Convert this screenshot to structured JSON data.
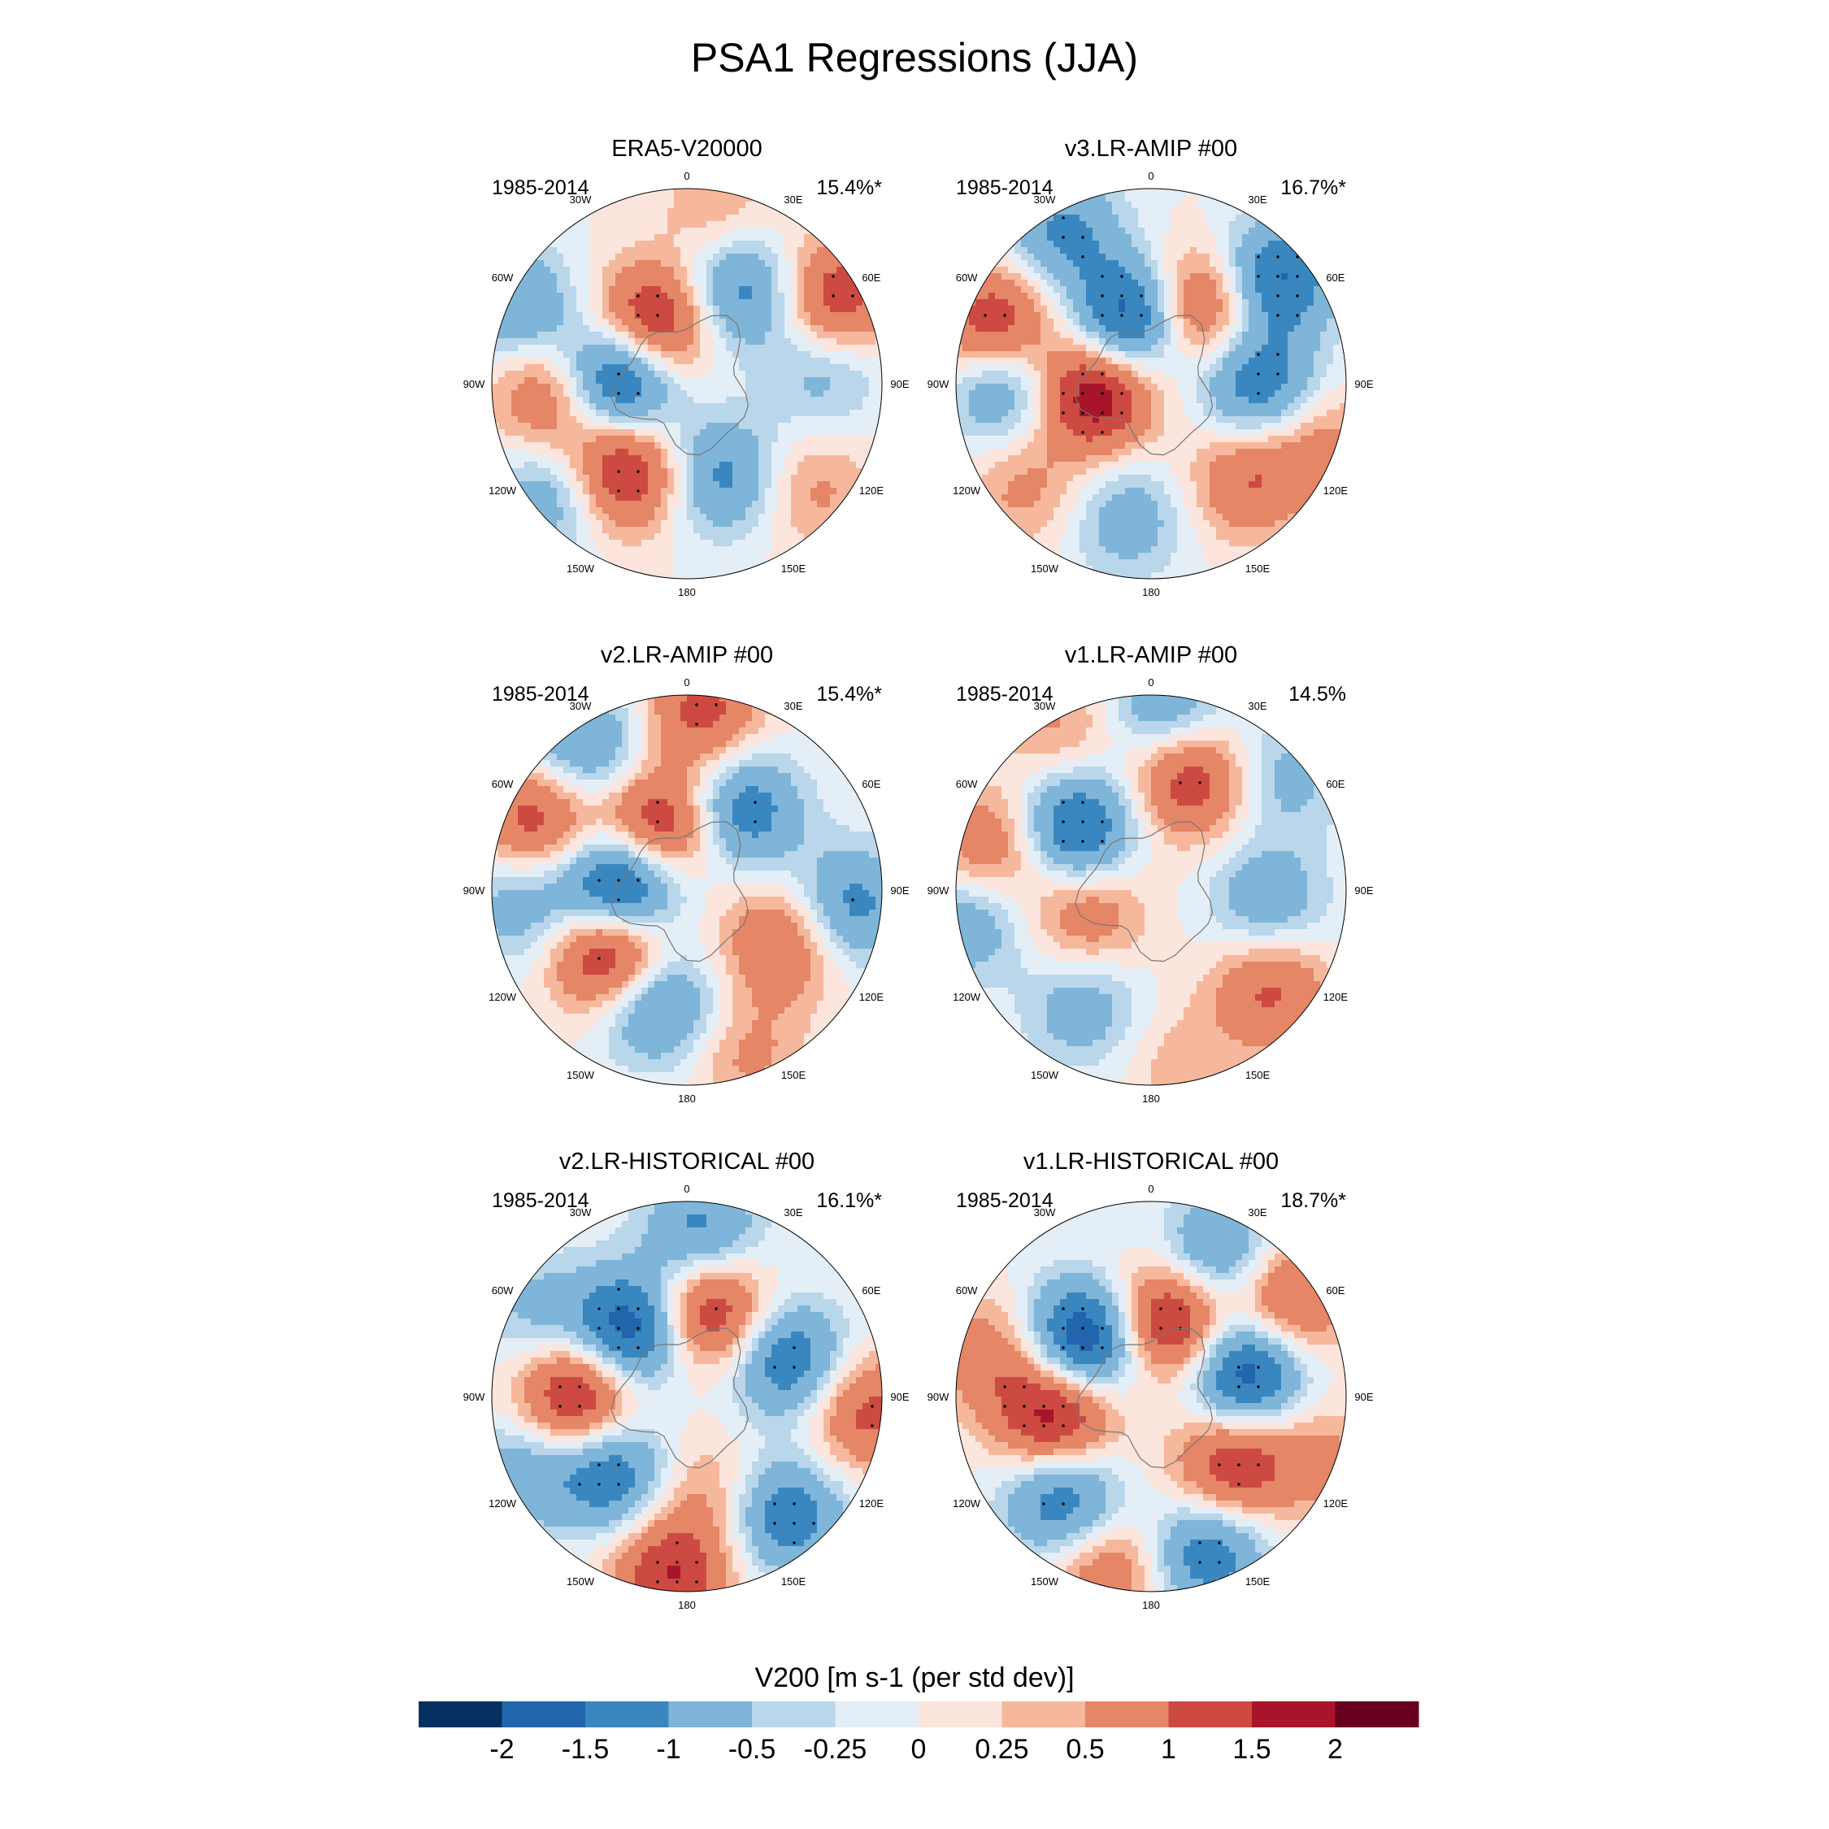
{
  "chart_data": {
    "type": "polar_contour_panels",
    "title": "PSA1 Regressions (JJA)",
    "colorbar": {
      "label": "V200 [m s-1 (per std dev)]",
      "tick_labels": [
        "-2",
        "-1.5",
        "-1",
        "-0.5",
        "-0.25",
        "0",
        "0.25",
        "0.5",
        "1",
        "1.5",
        "2"
      ],
      "levels": [
        -2,
        -1.5,
        -1,
        -0.5,
        -0.25,
        0,
        0.25,
        0.5,
        1,
        1.5,
        2
      ],
      "colors": [
        "#053061",
        "#2166ac",
        "#3a87c0",
        "#7fb5d8",
        "#b9d6ea",
        "#e4eef6",
        "#fbe5dc",
        "#f6b89c",
        "#e58667",
        "#cc4a42",
        "#a8152a",
        "#67001f"
      ]
    },
    "longitude_labels": [
      "0",
      "30E",
      "60E",
      "90E",
      "120E",
      "150E",
      "180",
      "150W",
      "120W",
      "90W",
      "60W",
      "30W"
    ],
    "panels": [
      {
        "title": "ERA5-V20000",
        "period": "1985-2014",
        "pct": "15.4%*",
        "anomalies": [
          {
            "lon": -35,
            "r": 0.55,
            "v": 1.7
          },
          {
            "lon": 20,
            "r": 0.5,
            "v": -1.2
          },
          {
            "lon": -95,
            "r": 0.35,
            "v": -2.2
          },
          {
            "lon": -150,
            "r": 0.35,
            "v": 1.9
          },
          {
            "lon": 150,
            "r": 0.55,
            "v": -1.3
          },
          {
            "lon": 120,
            "r": 0.88,
            "v": 1.4
          },
          {
            "lon": -85,
            "r": 0.7,
            "v": 1.1
          },
          {
            "lon": -50,
            "r": 0.9,
            "v": -0.9
          },
          {
            "lon": 95,
            "r": 0.7,
            "v": -0.7
          },
          {
            "lon": -115,
            "r": 0.95,
            "v": -1.0
          },
          {
            "lon": 50,
            "r": 0.85,
            "v": 0.6
          },
          {
            "lon": 170,
            "r": 0.9,
            "v": 0.5
          }
        ]
      },
      {
        "title": "v3.LR-AMIP  #00",
        "period": "1985-2014",
        "pct": "16.7%*",
        "anomalies": [
          {
            "lon": -80,
            "r": 0.3,
            "v": 2.0
          },
          {
            "lon": -165,
            "r": 0.35,
            "v": -2.1
          },
          {
            "lon": 150,
            "r": 0.45,
            "v": 1.6
          },
          {
            "lon": 90,
            "r": 0.55,
            "v": -1.4
          },
          {
            "lon": 130,
            "r": 0.85,
            "v": -1.6
          },
          {
            "lon": -110,
            "r": 0.85,
            "v": 1.6
          },
          {
            "lon": -90,
            "r": 0.75,
            "v": -1.3
          },
          {
            "lon": 45,
            "r": 0.7,
            "v": 1.0
          },
          {
            "lon": -10,
            "r": 0.7,
            "v": -0.8
          },
          {
            "lon": -150,
            "r": 0.9,
            "v": -1.1
          },
          {
            "lon": -50,
            "r": 0.85,
            "v": 0.6
          },
          {
            "lon": 70,
            "r": 0.95,
            "v": 0.7
          }
        ]
      },
      {
        "title": "v2.LR-AMIP  #00",
        "period": "1985-2014",
        "pct": "15.4%*",
        "anomalies": [
          {
            "lon": -50,
            "r": 0.5,
            "v": 2.0
          },
          {
            "lon": -95,
            "r": 0.33,
            "v": -2.3
          },
          {
            "lon": -155,
            "r": 0.35,
            "v": 1.8
          },
          {
            "lon": 145,
            "r": 0.5,
            "v": -1.4
          },
          {
            "lon": -15,
            "r": 0.6,
            "v": -1.4
          },
          {
            "lon": 60,
            "r": 0.55,
            "v": 1.1
          },
          {
            "lon": 85,
            "r": 0.85,
            "v": -1.2
          },
          {
            "lon": -115,
            "r": 0.85,
            "v": 1.3
          },
          {
            "lon": -145,
            "r": 0.9,
            "v": -1.1
          },
          {
            "lon": 175,
            "r": 0.92,
            "v": 1.2
          },
          {
            "lon": 20,
            "r": 0.9,
            "v": 0.6
          },
          {
            "lon": -85,
            "r": 0.85,
            "v": -0.8
          }
        ]
      },
      {
        "title": "v1.LR-AMIP  #00",
        "period": "1985-2014",
        "pct": "14.5%",
        "anomalies": [
          {
            "lon": -130,
            "r": 0.5,
            "v": -1.7
          },
          {
            "lon": 160,
            "r": 0.6,
            "v": 1.4
          },
          {
            "lon": -70,
            "r": 0.35,
            "v": 0.9
          },
          {
            "lon": 85,
            "r": 0.6,
            "v": -0.9
          },
          {
            "lon": 50,
            "r": 0.8,
            "v": 1.1
          },
          {
            "lon": -105,
            "r": 0.85,
            "v": 1.0
          },
          {
            "lon": -30,
            "r": 0.7,
            "v": -0.8
          },
          {
            "lon": -80,
            "r": 0.95,
            "v": -0.9
          },
          {
            "lon": 130,
            "r": 0.9,
            "v": -0.7
          },
          {
            "lon": 175,
            "r": 0.95,
            "v": -1.0
          },
          {
            "lon": -150,
            "r": 0.95,
            "v": 0.6
          },
          {
            "lon": 10,
            "r": 0.9,
            "v": 0.4
          }
        ]
      },
      {
        "title": "v2.LR-HISTORICAL  #00",
        "period": "1985-2014",
        "pct": "16.1%*",
        "anomalies": [
          {
            "lon": -90,
            "r": 0.55,
            "v": 1.8
          },
          {
            "lon": -140,
            "r": 0.45,
            "v": -2.0
          },
          {
            "lon": 165,
            "r": 0.45,
            "v": 1.7
          },
          {
            "lon": 110,
            "r": 0.55,
            "v": -1.5
          },
          {
            "lon": -45,
            "r": 0.55,
            "v": -1.5
          },
          {
            "lon": 40,
            "r": 0.8,
            "v": -1.4
          },
          {
            "lon": -5,
            "r": 0.92,
            "v": 1.5
          },
          {
            "lon": 10,
            "r": 0.5,
            "v": 0.6
          },
          {
            "lon": 85,
            "r": 0.92,
            "v": 1.2
          },
          {
            "lon": 175,
            "r": 0.85,
            "v": -1.2
          },
          {
            "lon": -120,
            "r": 0.9,
            "v": -0.6
          },
          {
            "lon": -65,
            "r": 0.95,
            "v": -0.8
          }
        ]
      },
      {
        "title": "v1.LR-HISTORICAL  #00",
        "period": "1985-2014",
        "pct": "18.7%*",
        "anomalies": [
          {
            "lon": -80,
            "r": 0.5,
            "v": 1.9
          },
          {
            "lon": -130,
            "r": 0.45,
            "v": -2.2
          },
          {
            "lon": 165,
            "r": 0.4,
            "v": 1.9
          },
          {
            "lon": 105,
            "r": 0.5,
            "v": -2.0
          },
          {
            "lon": 50,
            "r": 0.55,
            "v": 1.5
          },
          {
            "lon": -40,
            "r": 0.7,
            "v": -1.5
          },
          {
            "lon": 20,
            "r": 0.85,
            "v": -1.4
          },
          {
            "lon": 155,
            "r": 0.8,
            "v": -1.2
          },
          {
            "lon": 125,
            "r": 0.85,
            "v": 1.3
          },
          {
            "lon": -15,
            "r": 0.9,
            "v": 1.0
          },
          {
            "lon": -105,
            "r": 0.85,
            "v": 0.8
          },
          {
            "lon": 70,
            "r": 0.95,
            "v": 0.6
          }
        ]
      }
    ]
  }
}
